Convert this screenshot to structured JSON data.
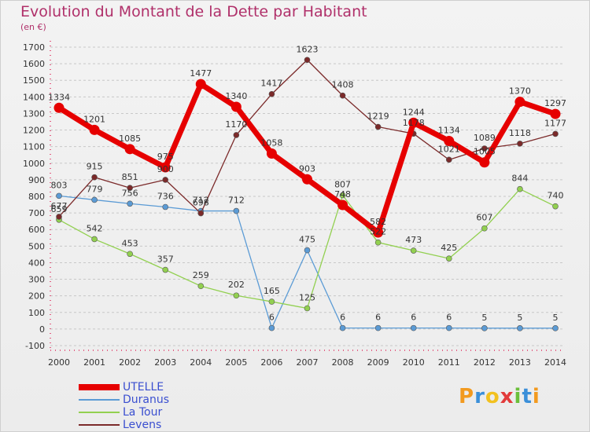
{
  "title": "Evolution du Montant de la Dette par Habitant",
  "unit_label": "(en €)",
  "logo_text": "Proxiti",
  "logo_colors": [
    "#f29a1f",
    "#3b8fd9",
    "#f2c11f",
    "#e23b3b",
    "#6bbf3a",
    "#3b8fd9",
    "#f29a1f"
  ],
  "colors": {
    "UTELLE": "#e60000",
    "Duranus": "#5b9bd5",
    "La Tour": "#92d050",
    "Levens": "#7b2a2a"
  },
  "chart_data": {
    "type": "line",
    "title": "Evolution du Montant de la Dette par Habitant",
    "ylabel": "(en €)",
    "ylim": [
      -100,
      1700
    ],
    "yticks": [
      -100,
      0,
      100,
      200,
      300,
      400,
      500,
      600,
      700,
      800,
      900,
      1000,
      1100,
      1200,
      1300,
      1400,
      1500,
      1600,
      1700
    ],
    "grid": "horizontal dashed",
    "legend": "bottom-left",
    "x": [
      "2000",
      "2001",
      "2002",
      "2003",
      "2004",
      "2005",
      "2006",
      "2007",
      "2008",
      "2009",
      "2010",
      "2011",
      "2012",
      "2013",
      "2014"
    ],
    "series": [
      {
        "name": "UTELLE",
        "values": [
          1334,
          1201,
          1085,
          975,
          1477,
          1340,
          1058,
          903,
          748,
          582,
          1244,
          1134,
          1005,
          1370,
          1297
        ],
        "labels": [
          "1334",
          "1201",
          "1085",
          "975",
          "1477",
          "1340",
          "1058",
          "903",
          "748",
          "582",
          "1244",
          "1134",
          "1005",
          "1370",
          "1297"
        ]
      },
      {
        "name": "Duranus",
        "values": [
          803,
          779,
          756,
          736,
          712,
          712,
          6,
          475,
          6,
          6,
          6,
          6,
          5,
          5,
          5
        ],
        "labels": [
          "803",
          "779",
          "756",
          "736",
          "712",
          "712",
          "6",
          "475",
          "6",
          "6",
          "6",
          "6",
          "5",
          "5",
          "5"
        ]
      },
      {
        "name": "La Tour",
        "values": [
          659,
          542,
          453,
          357,
          259,
          202,
          165,
          125,
          807,
          522,
          473,
          425,
          607,
          844,
          740
        ],
        "labels": [
          "659",
          "542",
          "453",
          "357",
          "259",
          "202",
          "165",
          "125",
          "807",
          "522",
          "473",
          "425",
          "607",
          "844",
          "740"
        ]
      },
      {
        "name": "Levens",
        "values": [
          677,
          915,
          851,
          900,
          698,
          1170,
          1417,
          1623,
          1408,
          1219,
          1178,
          1021,
          1089,
          1118,
          1177
        ],
        "labels": [
          "677",
          "915",
          "851",
          "900",
          "698",
          "1170",
          "1417",
          "1623",
          "1408",
          "1219",
          "1178",
          "1021",
          "1089",
          "1118",
          "1177"
        ]
      }
    ]
  }
}
